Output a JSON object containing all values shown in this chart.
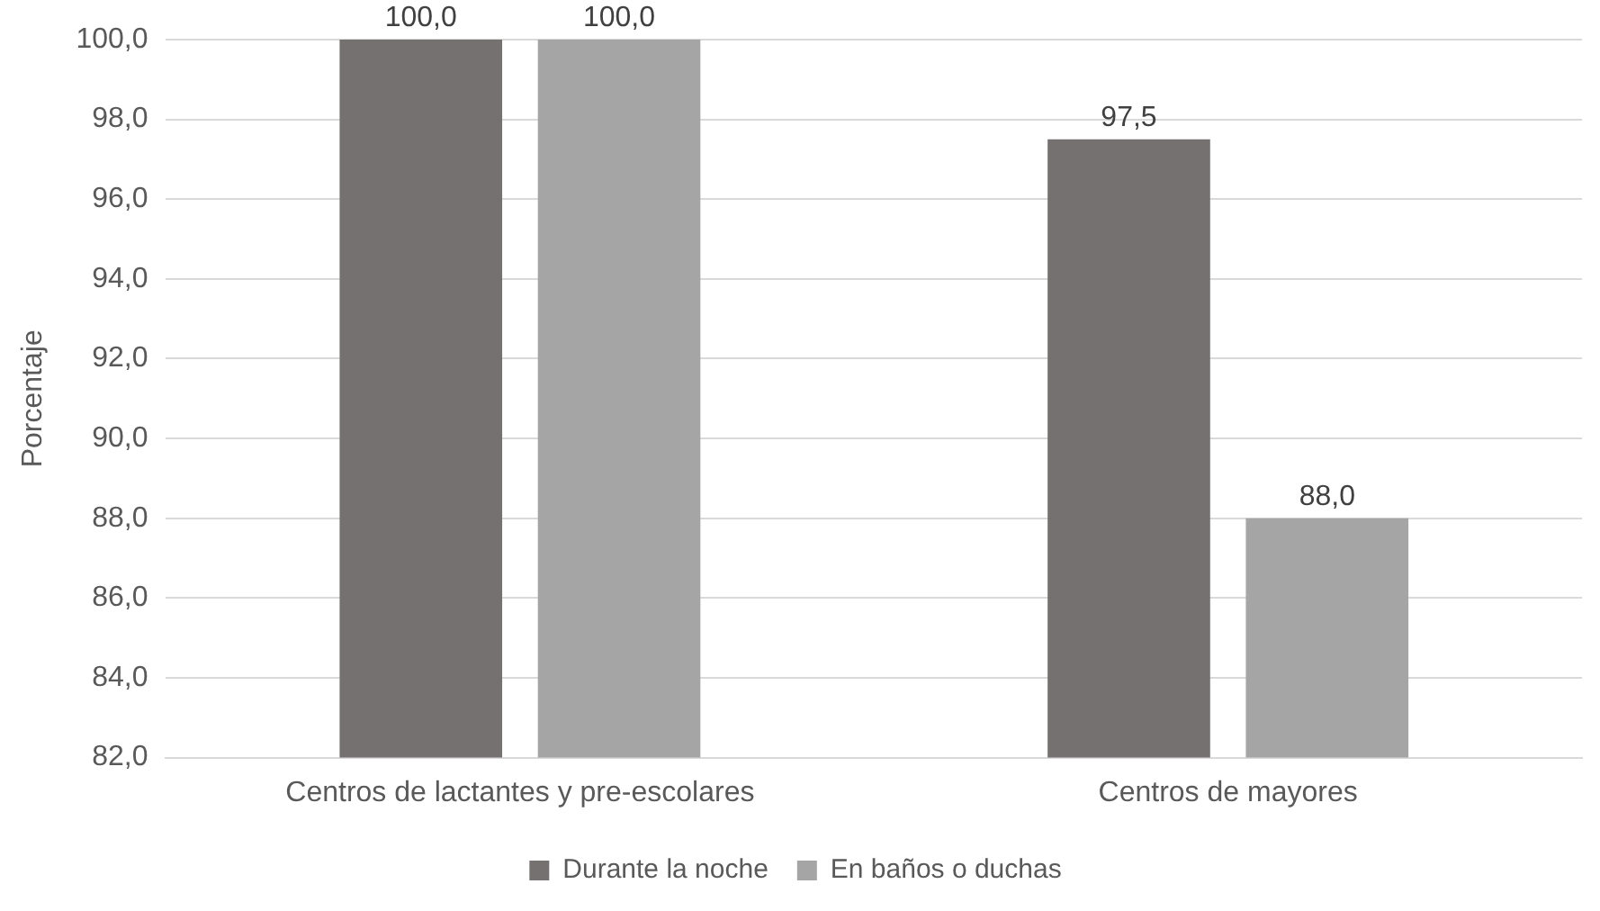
{
  "chart_data": {
    "type": "bar",
    "ylabel": "Porcentaje",
    "categories": [
      "Centros de lactantes y pre-escolares",
      "Centros de mayores"
    ],
    "series": [
      {
        "name": "Durante la noche",
        "color": "#767171",
        "values": [
          100.0,
          97.5
        ],
        "value_labels": [
          "100,0",
          "97,5"
        ]
      },
      {
        "name": "En baños o duchas",
        "color": "#a5a5a5",
        "values": [
          100.0,
          88.0
        ],
        "value_labels": [
          "100,0",
          "88,0"
        ]
      }
    ],
    "ylim": [
      82,
      100
    ],
    "yticks": [
      {
        "value": 82,
        "label": "82,0"
      },
      {
        "value": 84,
        "label": "84,0"
      },
      {
        "value": 86,
        "label": "86,0"
      },
      {
        "value": 88,
        "label": "88,0"
      },
      {
        "value": 90,
        "label": "90,0"
      },
      {
        "value": 92,
        "label": "92,0"
      },
      {
        "value": 94,
        "label": "94,0"
      },
      {
        "value": 96,
        "label": "96,0"
      },
      {
        "value": 98,
        "label": "98,0"
      },
      {
        "value": 100,
        "label": "100,0"
      }
    ],
    "grid": "y",
    "legend": "bottom"
  }
}
